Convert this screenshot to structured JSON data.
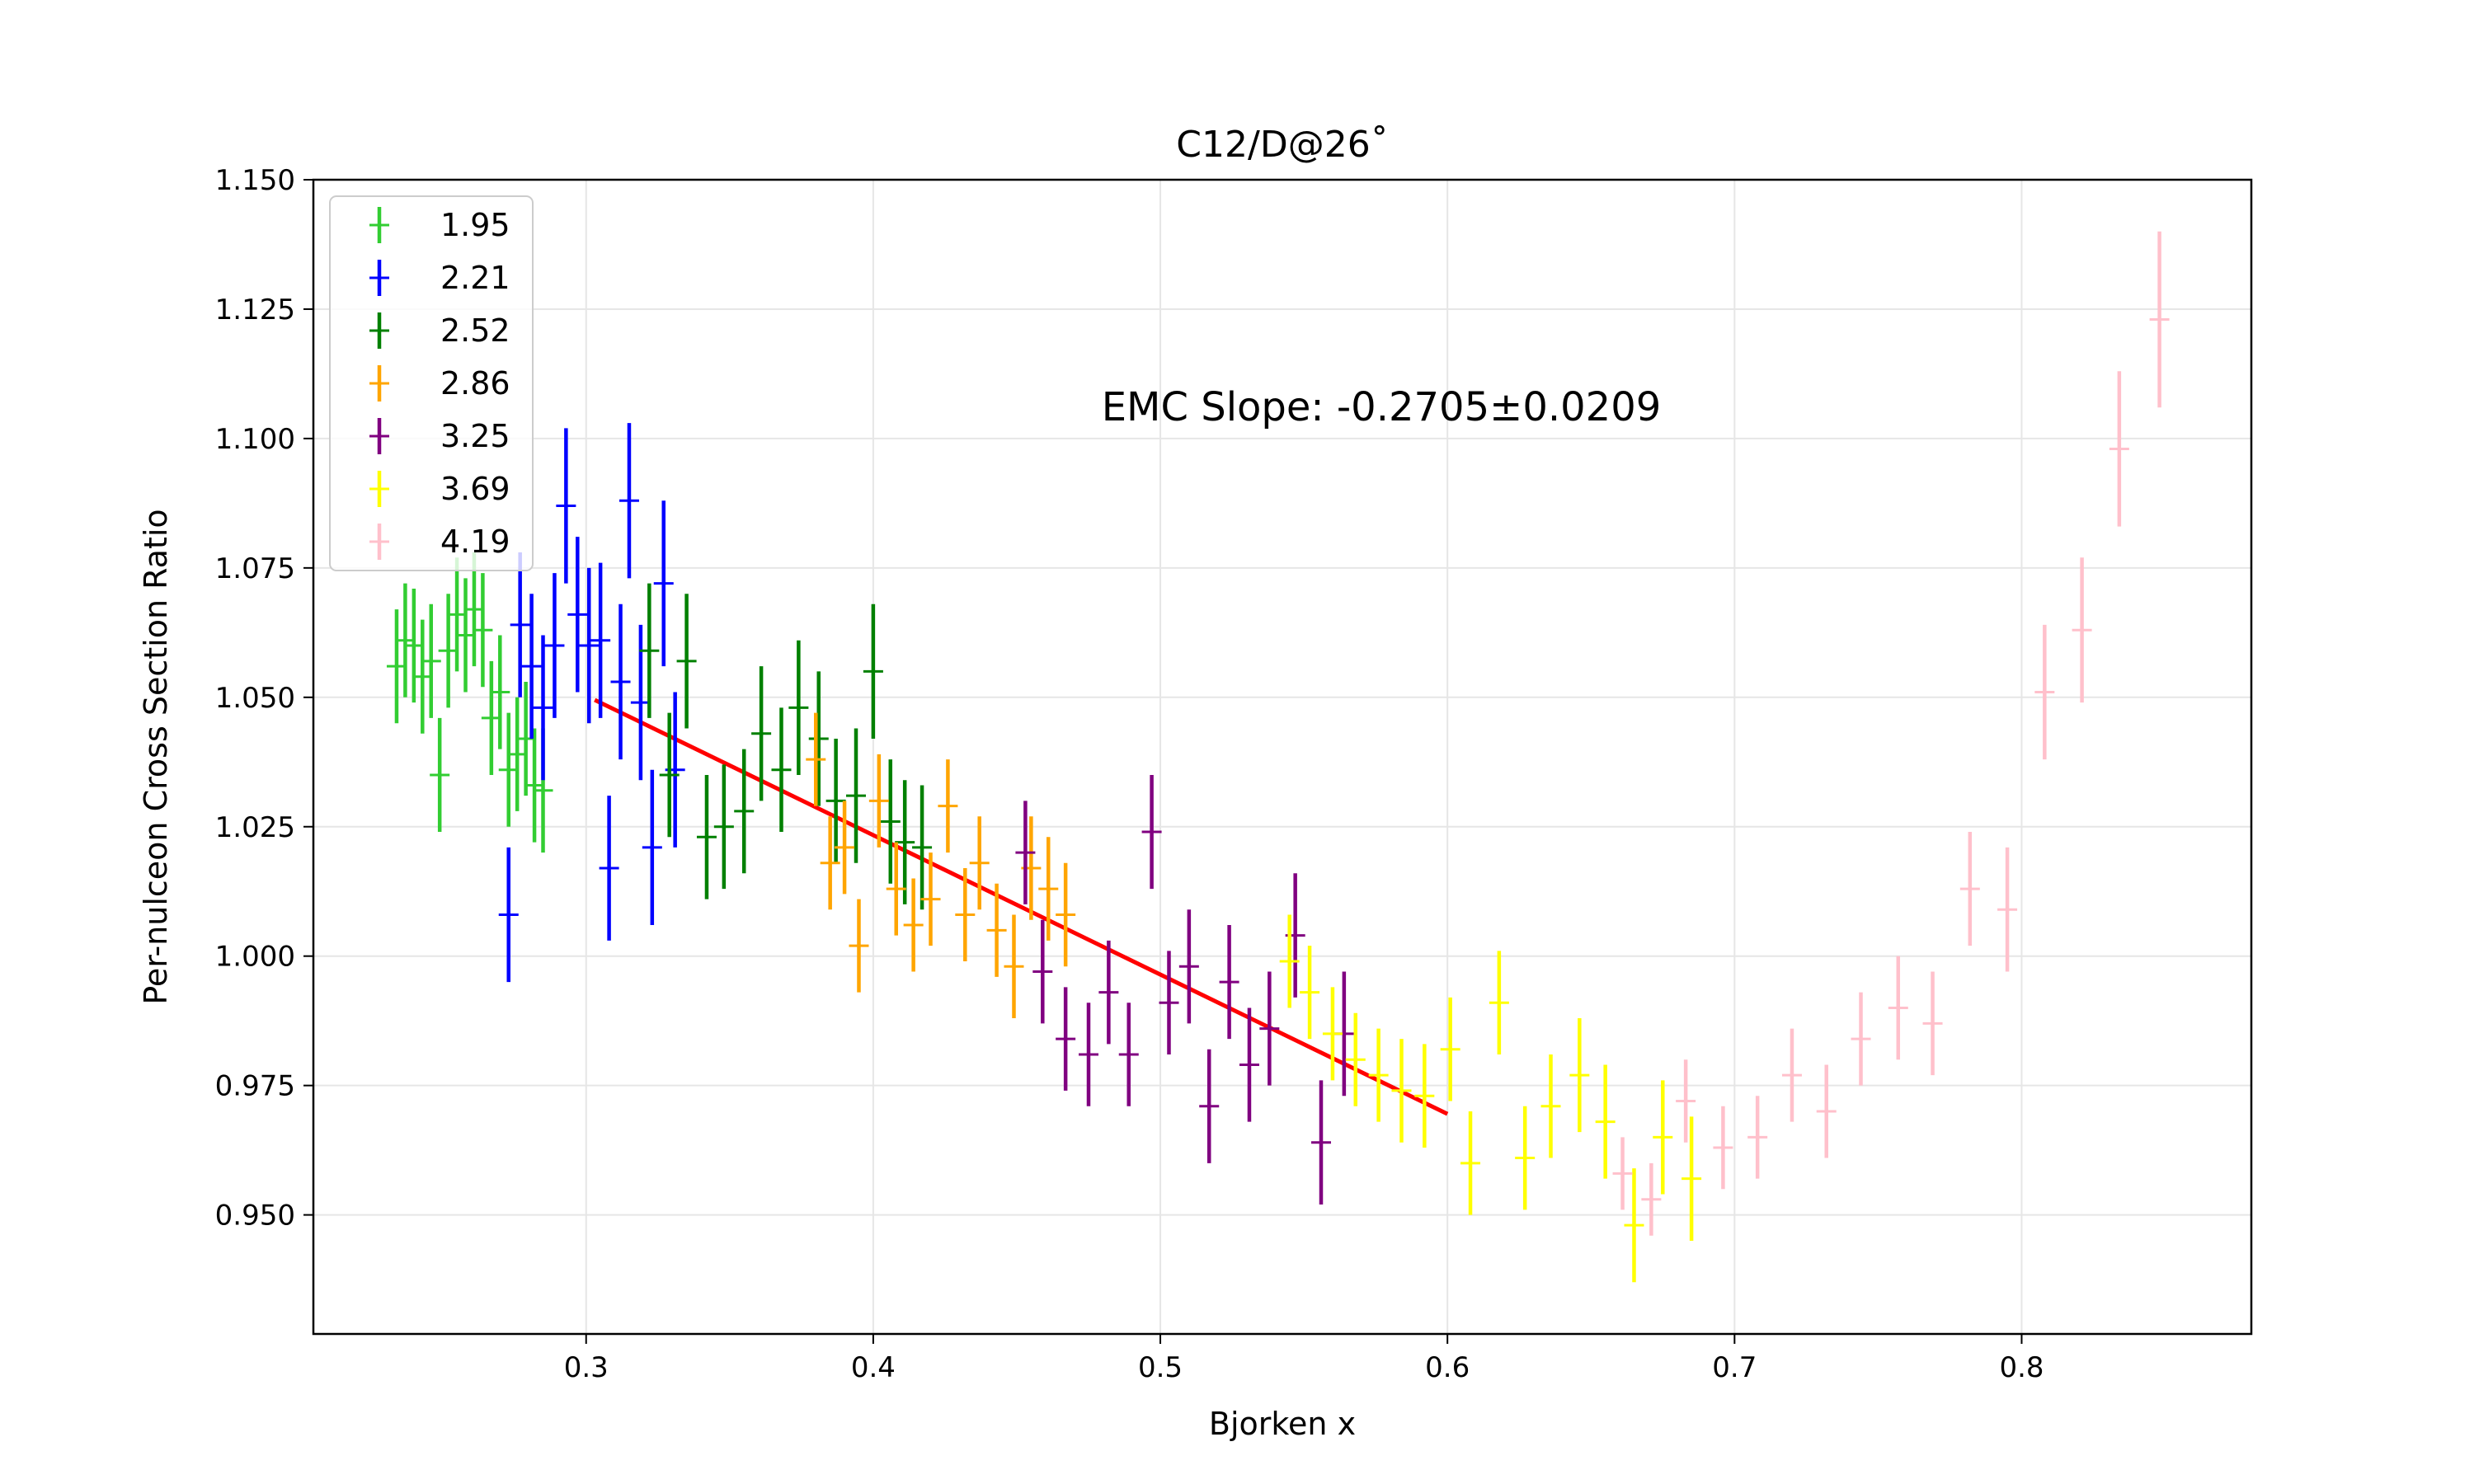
{
  "chart_data": {
    "type": "scatter",
    "title": "C12/D@26˚",
    "xlabel": "Bjorken x",
    "ylabel": "Per-nulceon Cross Section Ratio",
    "xlim": [
      0.205,
      0.88
    ],
    "ylim": [
      0.927,
      1.15
    ],
    "x_ticks": [
      {
        "value": 0.3,
        "label": "0.3"
      },
      {
        "value": 0.4,
        "label": "0.4"
      },
      {
        "value": 0.5,
        "label": "0.5"
      },
      {
        "value": 0.6,
        "label": "0.6"
      },
      {
        "value": 0.7,
        "label": "0.7"
      },
      {
        "value": 0.8,
        "label": "0.8"
      }
    ],
    "y_ticks": [
      {
        "value": 0.95,
        "label": "0.950"
      },
      {
        "value": 0.975,
        "label": "0.975"
      },
      {
        "value": 1.0,
        "label": "1.000"
      },
      {
        "value": 1.025,
        "label": "1.025"
      },
      {
        "value": 1.05,
        "label": "1.050"
      },
      {
        "value": 1.075,
        "label": "1.075"
      },
      {
        "value": 1.1,
        "label": "1.100"
      },
      {
        "value": 1.125,
        "label": "1.125"
      },
      {
        "value": 1.15,
        "label": "1.150"
      }
    ],
    "grid": true,
    "legend_position": "top-left",
    "annotation": "EMC Slope: -0.2705±0.0209",
    "fit_line": {
      "color": "#ff0000",
      "x": [
        0.303,
        0.6
      ],
      "y": [
        1.0495,
        0.9695
      ]
    },
    "series": [
      {
        "name": "1.95",
        "color": "#32cd32",
        "points": [
          [
            0.234,
            1.056,
            0.011
          ],
          [
            0.237,
            1.061,
            0.011
          ],
          [
            0.24,
            1.06,
            0.011
          ],
          [
            0.243,
            1.054,
            0.011
          ],
          [
            0.246,
            1.057,
            0.011
          ],
          [
            0.249,
            1.035,
            0.011
          ],
          [
            0.252,
            1.059,
            0.011
          ],
          [
            0.255,
            1.066,
            0.011
          ],
          [
            0.258,
            1.062,
            0.011
          ],
          [
            0.261,
            1.067,
            0.011
          ],
          [
            0.264,
            1.063,
            0.011
          ],
          [
            0.267,
            1.046,
            0.011
          ],
          [
            0.27,
            1.051,
            0.011
          ],
          [
            0.273,
            1.036,
            0.011
          ],
          [
            0.276,
            1.039,
            0.011
          ],
          [
            0.279,
            1.042,
            0.011
          ],
          [
            0.282,
            1.033,
            0.011
          ],
          [
            0.285,
            1.032,
            0.012
          ]
        ]
      },
      {
        "name": "2.21",
        "color": "#0000ff",
        "points": [
          [
            0.273,
            1.008,
            0.013
          ],
          [
            0.277,
            1.064,
            0.014
          ],
          [
            0.281,
            1.056,
            0.014
          ],
          [
            0.285,
            1.048,
            0.014
          ],
          [
            0.289,
            1.06,
            0.014
          ],
          [
            0.293,
            1.087,
            0.015
          ],
          [
            0.297,
            1.066,
            0.015
          ],
          [
            0.301,
            1.06,
            0.015
          ],
          [
            0.305,
            1.061,
            0.015
          ],
          [
            0.308,
            1.017,
            0.014
          ],
          [
            0.312,
            1.053,
            0.015
          ],
          [
            0.315,
            1.088,
            0.015
          ],
          [
            0.319,
            1.049,
            0.015
          ],
          [
            0.323,
            1.021,
            0.015
          ],
          [
            0.327,
            1.072,
            0.016
          ],
          [
            0.331,
            1.036,
            0.015
          ]
        ]
      },
      {
        "name": "2.52",
        "color": "#008000",
        "points": [
          [
            0.322,
            1.059,
            0.013
          ],
          [
            0.329,
            1.035,
            0.012
          ],
          [
            0.335,
            1.057,
            0.013
          ],
          [
            0.342,
            1.023,
            0.012
          ],
          [
            0.348,
            1.025,
            0.012
          ],
          [
            0.355,
            1.028,
            0.012
          ],
          [
            0.361,
            1.043,
            0.013
          ],
          [
            0.368,
            1.036,
            0.012
          ],
          [
            0.374,
            1.048,
            0.013
          ],
          [
            0.381,
            1.042,
            0.013
          ],
          [
            0.387,
            1.03,
            0.012
          ],
          [
            0.394,
            1.031,
            0.013
          ],
          [
            0.4,
            1.055,
            0.013
          ],
          [
            0.406,
            1.026,
            0.012
          ],
          [
            0.411,
            1.022,
            0.012
          ],
          [
            0.417,
            1.021,
            0.012
          ]
        ]
      },
      {
        "name": "2.86",
        "color": "#ffa500",
        "points": [
          [
            0.38,
            1.038,
            0.009
          ],
          [
            0.385,
            1.018,
            0.009
          ],
          [
            0.39,
            1.021,
            0.009
          ],
          [
            0.395,
            1.002,
            0.009
          ],
          [
            0.402,
            1.03,
            0.009
          ],
          [
            0.408,
            1.013,
            0.009
          ],
          [
            0.414,
            1.006,
            0.009
          ],
          [
            0.42,
            1.011,
            0.009
          ],
          [
            0.426,
            1.029,
            0.009
          ],
          [
            0.432,
            1.008,
            0.009
          ],
          [
            0.437,
            1.018,
            0.009
          ],
          [
            0.443,
            1.005,
            0.009
          ],
          [
            0.449,
            0.998,
            0.01
          ],
          [
            0.455,
            1.017,
            0.01
          ],
          [
            0.461,
            1.013,
            0.01
          ],
          [
            0.467,
            1.008,
            0.01
          ]
        ]
      },
      {
        "name": "3.25",
        "color": "#800080",
        "points": [
          [
            0.453,
            1.02,
            0.01
          ],
          [
            0.459,
            0.997,
            0.01
          ],
          [
            0.467,
            0.984,
            0.01
          ],
          [
            0.475,
            0.981,
            0.01
          ],
          [
            0.482,
            0.993,
            0.01
          ],
          [
            0.489,
            0.981,
            0.01
          ],
          [
            0.497,
            1.024,
            0.011
          ],
          [
            0.503,
            0.991,
            0.01
          ],
          [
            0.51,
            0.998,
            0.011
          ],
          [
            0.517,
            0.971,
            0.011
          ],
          [
            0.524,
            0.995,
            0.011
          ],
          [
            0.531,
            0.979,
            0.011
          ],
          [
            0.538,
            0.986,
            0.011
          ],
          [
            0.547,
            1.004,
            0.012
          ],
          [
            0.556,
            0.964,
            0.012
          ],
          [
            0.564,
            0.985,
            0.012
          ]
        ]
      },
      {
        "name": "3.69",
        "color": "#ffff00",
        "points": [
          [
            0.545,
            0.999,
            0.009
          ],
          [
            0.552,
            0.993,
            0.009
          ],
          [
            0.56,
            0.985,
            0.009
          ],
          [
            0.568,
            0.98,
            0.009
          ],
          [
            0.576,
            0.977,
            0.009
          ],
          [
            0.584,
            0.974,
            0.01
          ],
          [
            0.592,
            0.973,
            0.01
          ],
          [
            0.601,
            0.982,
            0.01
          ],
          [
            0.608,
            0.96,
            0.01
          ],
          [
            0.618,
            0.991,
            0.01
          ],
          [
            0.627,
            0.961,
            0.01
          ],
          [
            0.636,
            0.971,
            0.01
          ],
          [
            0.646,
            0.977,
            0.011
          ],
          [
            0.655,
            0.968,
            0.011
          ],
          [
            0.665,
            0.948,
            0.011
          ],
          [
            0.675,
            0.965,
            0.011
          ],
          [
            0.685,
            0.957,
            0.012
          ]
        ]
      },
      {
        "name": "4.19",
        "color": "#ffc0cb",
        "points": [
          [
            0.661,
            0.958,
            0.007
          ],
          [
            0.671,
            0.953,
            0.007
          ],
          [
            0.683,
            0.972,
            0.008
          ],
          [
            0.696,
            0.963,
            0.008
          ],
          [
            0.708,
            0.965,
            0.008
          ],
          [
            0.72,
            0.977,
            0.009
          ],
          [
            0.732,
            0.97,
            0.009
          ],
          [
            0.744,
            0.984,
            0.009
          ],
          [
            0.757,
            0.99,
            0.01
          ],
          [
            0.769,
            0.987,
            0.01
          ],
          [
            0.782,
            1.013,
            0.011
          ],
          [
            0.795,
            1.009,
            0.012
          ],
          [
            0.808,
            1.051,
            0.013
          ],
          [
            0.821,
            1.063,
            0.014
          ],
          [
            0.834,
            1.098,
            0.015
          ],
          [
            0.848,
            1.123,
            0.017
          ]
        ]
      }
    ]
  }
}
